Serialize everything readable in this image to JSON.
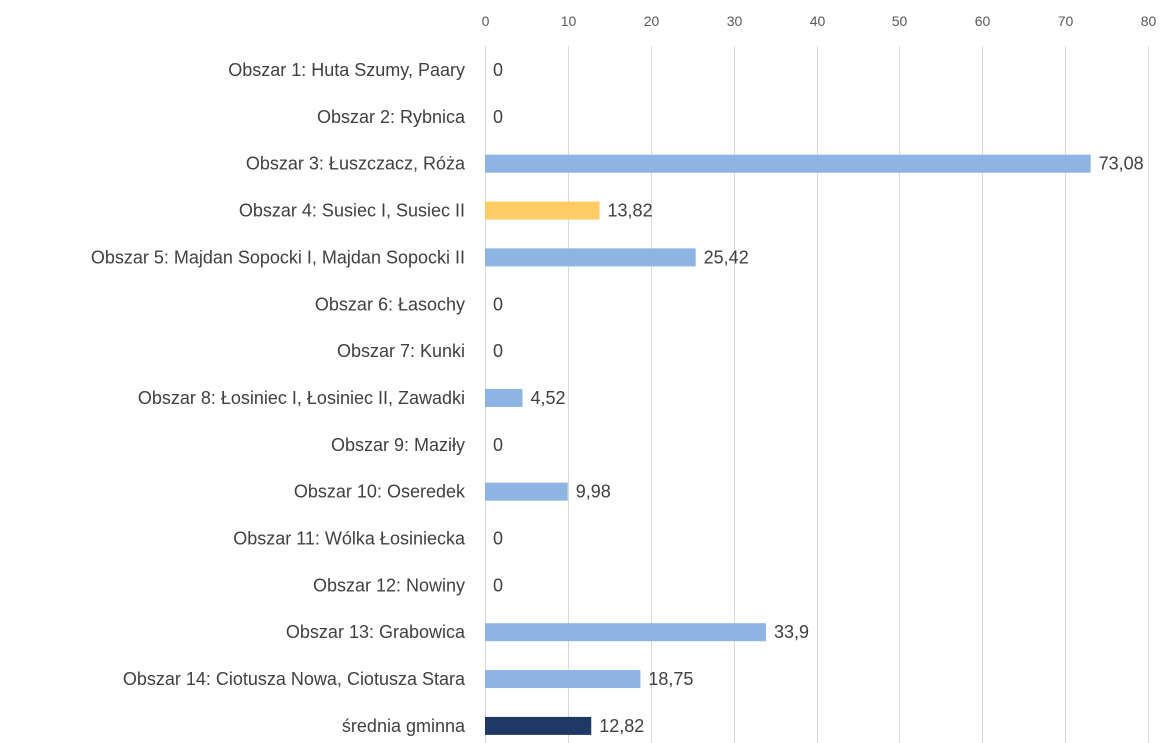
{
  "chart_data": {
    "type": "bar",
    "orientation": "horizontal",
    "title": "",
    "xlabel": "",
    "ylabel": "",
    "xlim": [
      0,
      80
    ],
    "ticks": [
      "0",
      "10",
      "20",
      "30",
      "40",
      "50",
      "60",
      "70",
      "80"
    ],
    "tick_values": [
      0,
      10,
      20,
      30,
      40,
      50,
      60,
      70,
      80
    ],
    "x_axis_position": "top",
    "grid": true,
    "legend": "none",
    "categories": [
      "Obszar 1: Huta Szumy, Paary",
      "Obszar 2: Rybnica",
      "Obszar 3: Łuszczacz, Róża",
      "Obszar 4: Susiec I, Susiec II",
      "Obszar 5: Majdan Sopocki I, Majdan Sopocki II",
      "Obszar 6: Łasochy",
      "Obszar 7: Kunki",
      "Obszar 8: Łosiniec I, Łosiniec II, Zawadki",
      "Obszar 9: Maziły",
      "Obszar 10: Oseredek",
      "Obszar 11: Wólka Łosiniecka",
      "Obszar 12: Nowiny",
      "Obszar 13: Grabowica",
      "Obszar 14: Ciotusza Nowa, Ciotusza Stara",
      "średnia gminna"
    ],
    "values": [
      0,
      0,
      73.08,
      13.82,
      25.42,
      0,
      0,
      4.52,
      0,
      9.98,
      0,
      0,
      33.9,
      18.75,
      12.82
    ],
    "value_labels": [
      "0",
      "0",
      "73,08",
      "13,82",
      "25,42",
      "0",
      "0",
      "4,52",
      "0",
      "9,98",
      "0",
      "0",
      "33,9",
      "18,75",
      "12,82"
    ],
    "bar_colors": [
      "#8eb4e3",
      "#8eb4e3",
      "#8eb4e3",
      "#ffcc66",
      "#8eb4e3",
      "#8eb4e3",
      "#8eb4e3",
      "#8eb4e3",
      "#8eb4e3",
      "#8eb4e3",
      "#8eb4e3",
      "#8eb4e3",
      "#8eb4e3",
      "#8eb4e3",
      "#1f3864"
    ],
    "colors": {
      "default_bar": "#8eb4e3",
      "highlight_bar": "#ffcc66",
      "average_bar": "#1f3864",
      "gridline": "#d9d9d9",
      "text": "#404040"
    }
  }
}
